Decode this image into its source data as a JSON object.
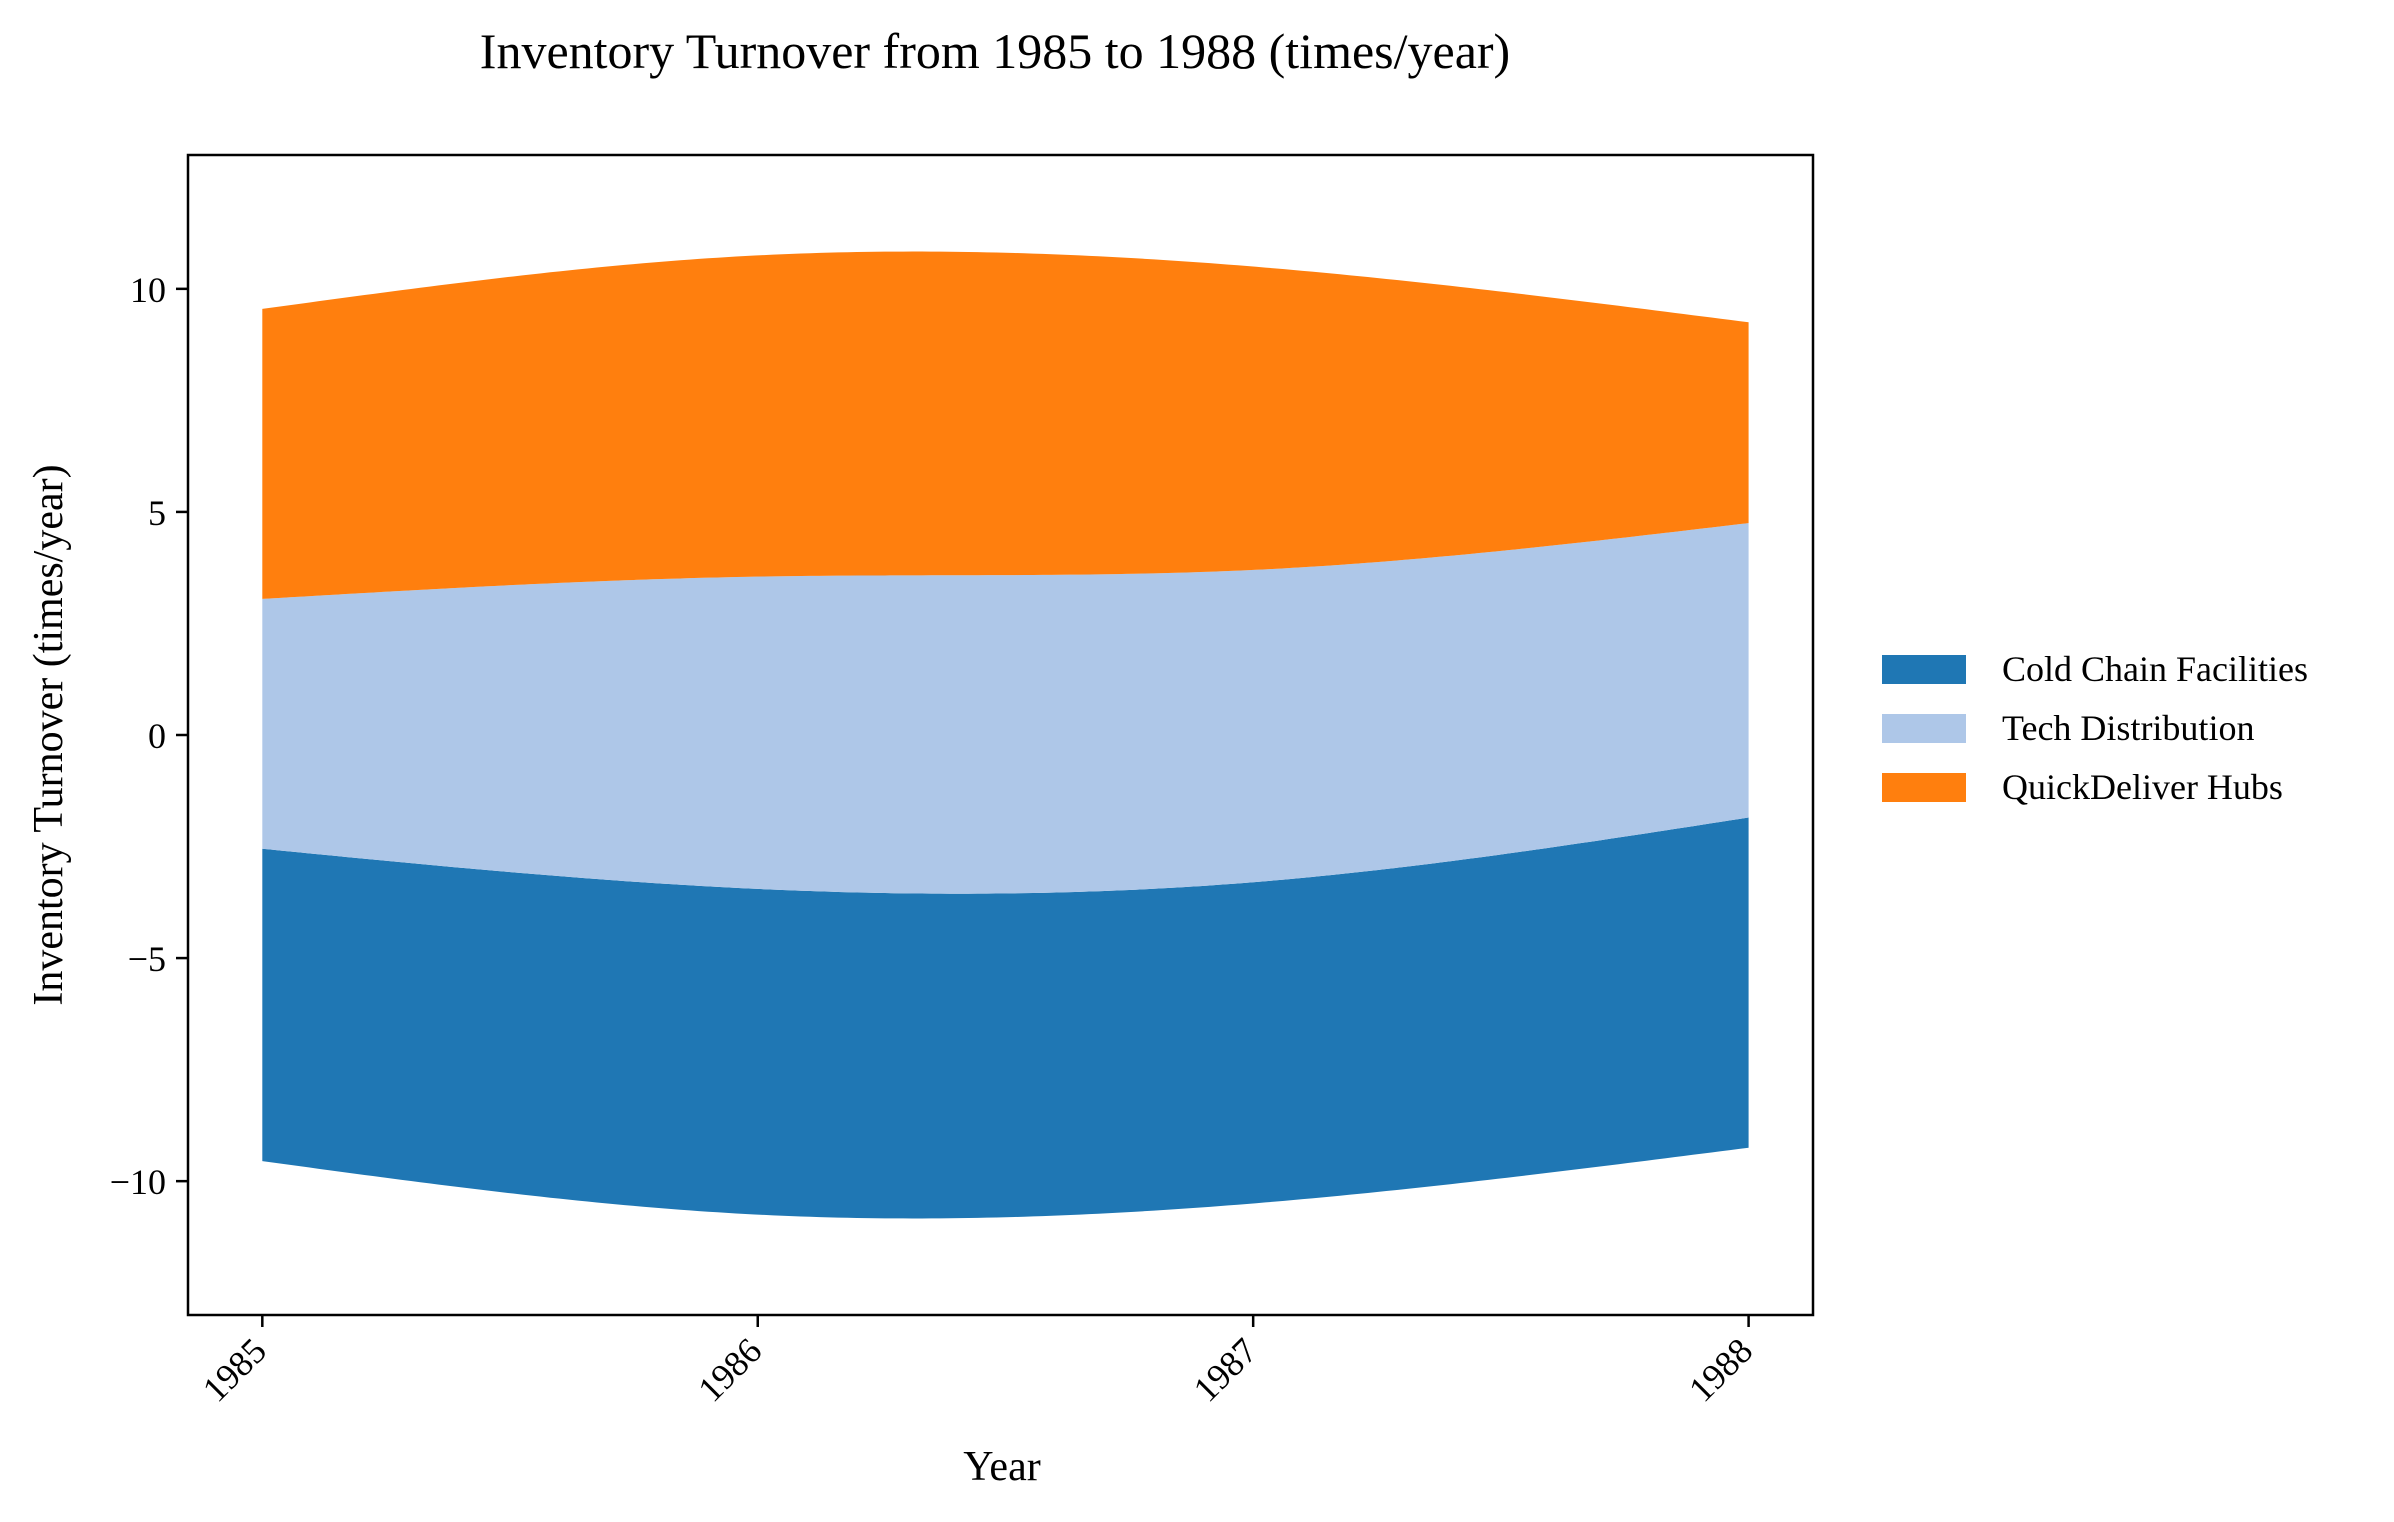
{
  "chart_data": {
    "type": "area",
    "subtype": "streamgraph",
    "title": "Inventory Turnover from 1985 to 1988 (times/year)",
    "xlabel": "Year",
    "ylabel": "Inventory Turnover (times/year)",
    "x": [
      1985,
      1986,
      1987,
      1988
    ],
    "x_tick_labels": [
      "1985",
      "1986",
      "1987",
      "1988"
    ],
    "xlim": [
      1984.85,
      1988.13
    ],
    "ylim": [
      -13,
      13
    ],
    "y_ticks": [
      10,
      5,
      0,
      -5,
      -10
    ],
    "y_tick_labels": [
      "10",
      "5",
      "0",
      "−5",
      "−10"
    ],
    "baseline": "symmetric",
    "grid": false,
    "legend_position": "right",
    "series": [
      {
        "name": "Cold Chain Facilities",
        "color": "#1f77b4",
        "values": [
          7.0,
          7.3,
          7.2,
          7.4
        ]
      },
      {
        "name": "Tech Distribution",
        "color": "#aec7e8",
        "values": [
          5.6,
          7.0,
          7.0,
          6.6
        ]
      },
      {
        "name": "QuickDeliver Hubs",
        "color": "#ff7f0e",
        "values": [
          6.5,
          7.2,
          6.8,
          4.5
        ]
      }
    ]
  }
}
